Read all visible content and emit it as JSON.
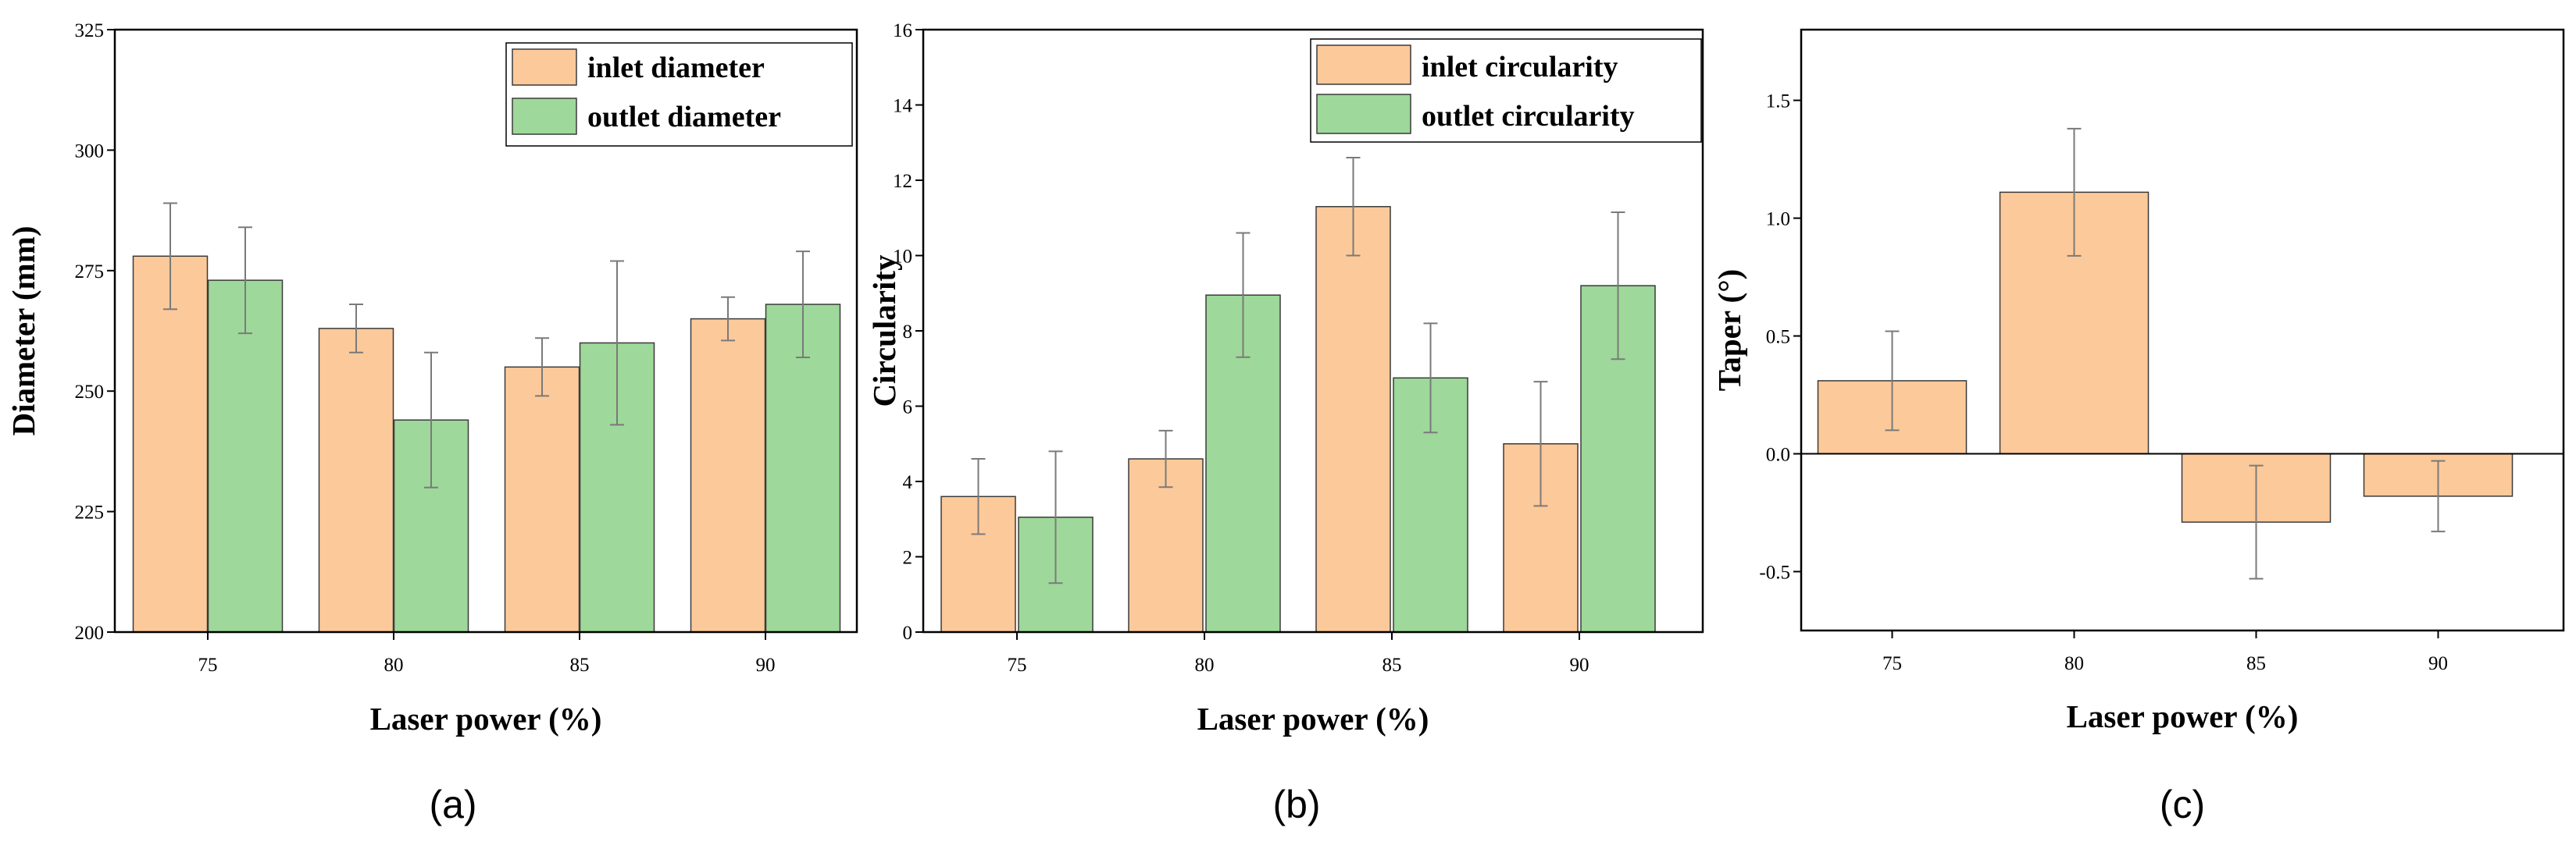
{
  "chart_data": [
    {
      "type": "bar",
      "caption": "(a)",
      "xlabel": "Laser power (%)",
      "ylabel": "Diameter (mm)",
      "categories": [
        "75",
        "80",
        "85",
        "90"
      ],
      "ylim": [
        200,
        325
      ],
      "yticks": [
        "200",
        "225",
        "250",
        "275",
        "300",
        "325"
      ],
      "series": [
        {
          "name": "inlet diameter",
          "color": "#FCC99A",
          "values": [
            278,
            263,
            255,
            265
          ],
          "errors": [
            11,
            5,
            6,
            4.5
          ]
        },
        {
          "name": "outlet diameter",
          "color": "#9ED89A",
          "values": [
            273,
            244,
            260,
            268
          ],
          "errors": [
            11,
            14,
            17,
            11
          ]
        }
      ],
      "legend": "top-right"
    },
    {
      "type": "bar",
      "caption": "(b)",
      "xlabel": "Laser power (%)",
      "ylabel": "Circularity",
      "categories": [
        "75",
        "80",
        "85",
        "90"
      ],
      "ylim": [
        0,
        16
      ],
      "yticks": [
        "0",
        "2",
        "4",
        "6",
        "8",
        "10",
        "12",
        "14",
        "16"
      ],
      "series": [
        {
          "name": "inlet circularity",
          "color": "#FCC99A",
          "values": [
            3.6,
            4.6,
            11.3,
            5.0
          ],
          "errors": [
            1.0,
            0.75,
            1.3,
            1.65
          ]
        },
        {
          "name": "outlet circularity",
          "color": "#9ED89A",
          "values": [
            3.05,
            8.95,
            6.75,
            9.2
          ],
          "errors": [
            1.75,
            1.65,
            1.45,
            1.95
          ]
        }
      ],
      "legend": "top-right"
    },
    {
      "type": "bar",
      "caption": "(c)",
      "xlabel": "Laser power (%)",
      "ylabel": "Taper (°)",
      "categories": [
        "75",
        "80",
        "85",
        "90"
      ],
      "ylim": [
        -0.75,
        1.8
      ],
      "yticks": [
        "-0.5",
        "0.0",
        "0.5",
        "1.0",
        "1.5"
      ],
      "series": [
        {
          "name": "taper",
          "color": "#FCC99A",
          "values": [
            0.31,
            1.11,
            -0.29,
            -0.18
          ],
          "errors": [
            0.21,
            0.27,
            0.24,
            0.15
          ]
        }
      ]
    }
  ]
}
